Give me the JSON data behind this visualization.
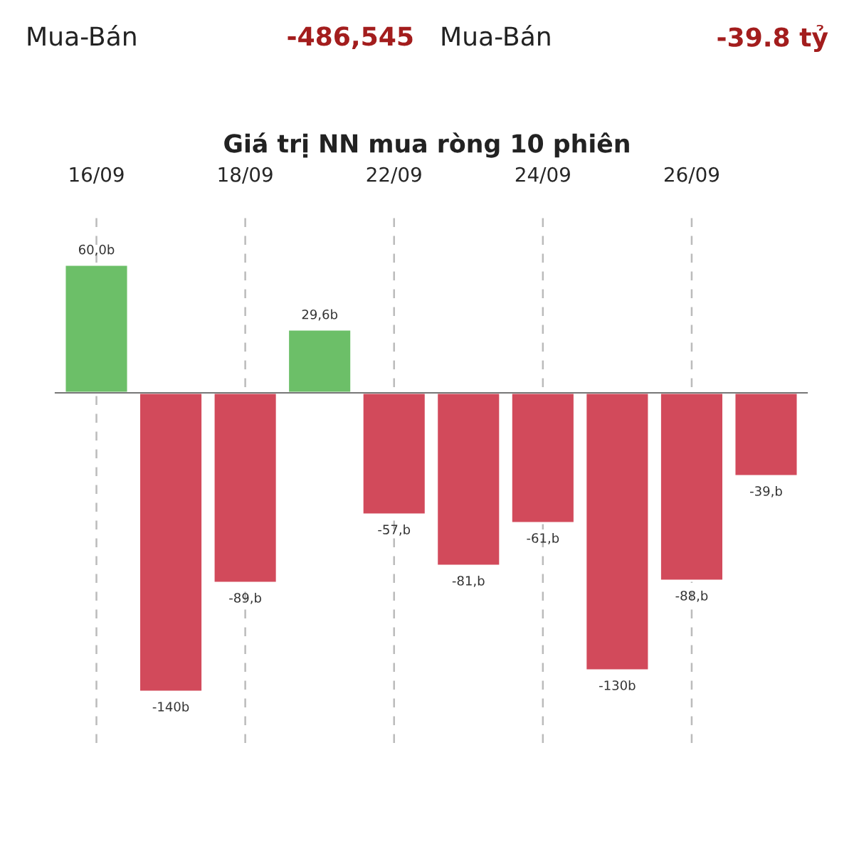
{
  "chart_data": {
    "type": "bar",
    "title": "Giá trị NN mua ròng 10 phiên",
    "categories": [
      "16/09",
      null,
      "18/09",
      null,
      "22/09",
      null,
      "24/09",
      null,
      "26/09",
      null
    ],
    "values": [
      60,
      -140,
      -89,
      29.6,
      -57,
      -81,
      -61,
      -130,
      -88,
      -39
    ],
    "colors": [
      "#6cbf68",
      "#d24a5b",
      "#d24a5b",
      "#6cbf68",
      "#d24a5b",
      "#d24a5b",
      "#d24a5b",
      "#d24a5b",
      "#d24a5b",
      "#d24a5b"
    ],
    "value_labels": [
      "60,0b",
      "-140b",
      "-89,b",
      "29,6b",
      "-57,b",
      "-81,b",
      "-61,b",
      "-130b",
      "-88,b",
      "-39,b"
    ],
    "grid": "x",
    "legend": false,
    "annotations": [
      "Mua-Bán",
      "-486,545",
      "Mua-Bán",
      "-39.8 tỷ"
    ]
  }
}
